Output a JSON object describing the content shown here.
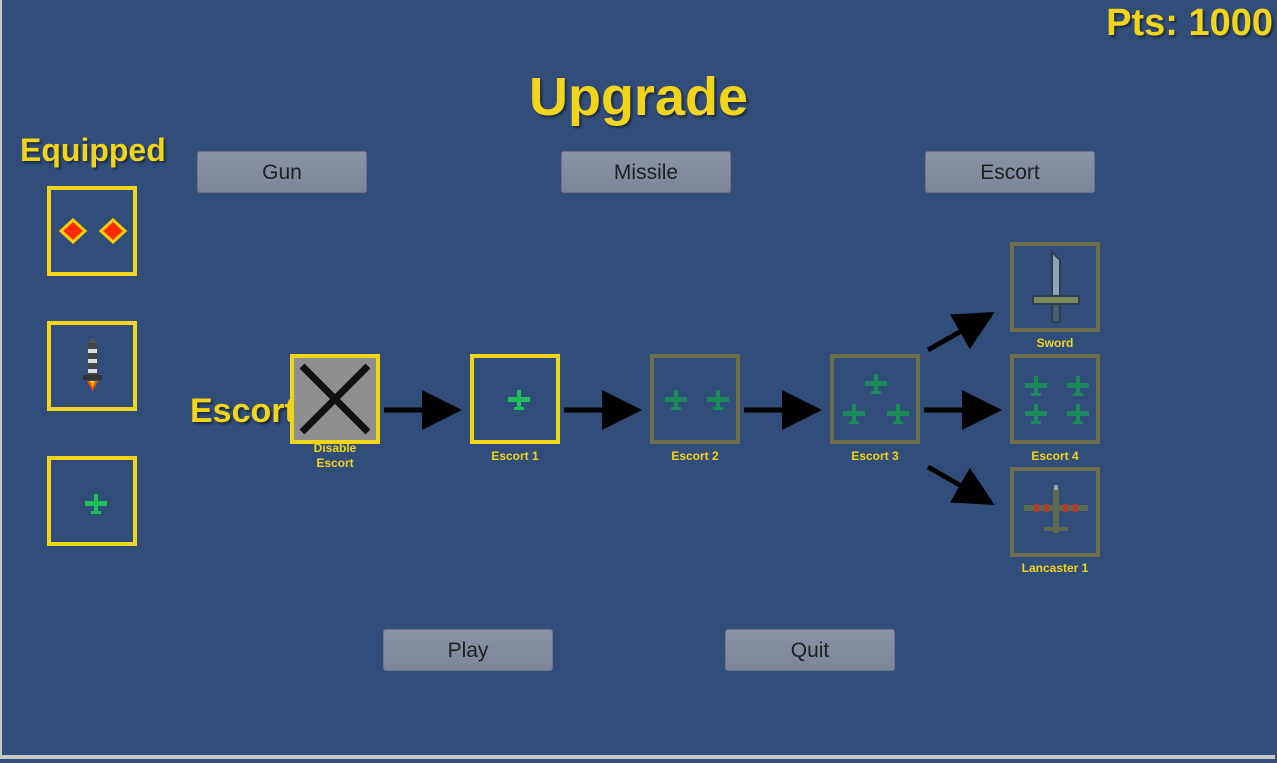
{
  "header": {
    "points": "Pts: 1000",
    "title": "Upgrade"
  },
  "equipped": {
    "label": "Equipped",
    "slots": [
      "gun-icon",
      "missile-icon",
      "escort-plane-icon"
    ]
  },
  "tabs": {
    "gun": "Gun",
    "missile": "Missile",
    "escort": "Escort"
  },
  "tree": {
    "row_label": "Escort",
    "nodes": {
      "disable": "Disable Escort",
      "escort1": "Escort 1",
      "escort2": "Escort 2",
      "escort3": "Escort 3",
      "sword": "Sword",
      "escort4": "Escort 4",
      "lancaster1": "Lancaster 1"
    }
  },
  "footer": {
    "play": "Play",
    "quit": "Quit"
  },
  "colors": {
    "background": "#314d79",
    "accent": "#f2d41a",
    "locked_border": "#6e6e4a",
    "button": "#848d9f"
  }
}
